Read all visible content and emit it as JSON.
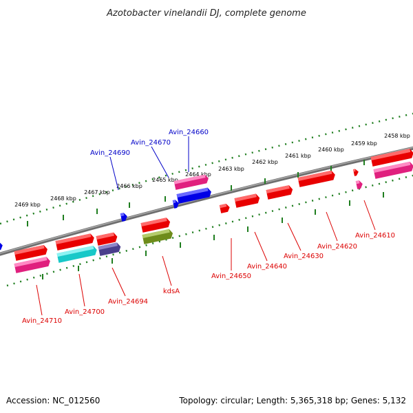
{
  "title": "Azotobacter vinelandii DJ, complete genome",
  "footer": {
    "accession": "Accession: NC_012560",
    "topology": "Topology: circular; Length: 5,365,318 bp; Genes: 5,132"
  },
  "colors": {
    "backbone": "#808080",
    "tick": "#1e7d1e",
    "forward_label": "#0000c8",
    "reverse_label": "#dc0000"
  },
  "ruler": {
    "ticks": [
      "2469 kbp",
      "2468 kbp",
      "2467 kbp",
      "2466 kbp",
      "2465 kbp",
      "2464 kbp",
      "2463 kbp",
      "2462 kbp",
      "2461 kbp",
      "2460 kbp",
      "2459 kbp",
      "2458 kbp"
    ]
  },
  "genes": [
    {
      "label": "Avin_24690",
      "strand": "+"
    },
    {
      "label": "Avin_24670",
      "strand": "+"
    },
    {
      "label": "Avin_24660",
      "strand": "+"
    },
    {
      "label": "Avin_24710",
      "strand": "-"
    },
    {
      "label": "Avin_24700",
      "strand": "-"
    },
    {
      "label": "Avin_24694",
      "strand": "-"
    },
    {
      "label": "kdsA",
      "strand": "-"
    },
    {
      "label": "Avin_24650",
      "strand": "-"
    },
    {
      "label": "Avin_24640",
      "strand": "-"
    },
    {
      "label": "Avin_24630",
      "strand": "-"
    },
    {
      "label": "Avin_24620",
      "strand": "-"
    },
    {
      "label": "Avin_24610",
      "strand": "-"
    }
  ]
}
